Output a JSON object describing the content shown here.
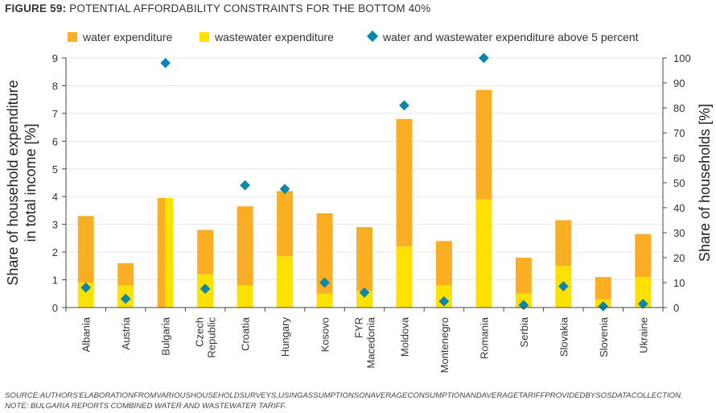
{
  "figure": {
    "number": "FIGURE 59:",
    "title": "POTENTIAL AFFORDABILITY CONSTRAINTS FOR THE BOTTOM 40%"
  },
  "legend": {
    "water": "water expenditure",
    "wastewater": "wastewater expenditure",
    "above5": "water and wastewater expenditure above 5 percent"
  },
  "colors": {
    "water": "#F9AE24",
    "wastewater": "#FFE100",
    "above5": "#0A86A8",
    "axis": "#444444",
    "grid": "#e6e6e6"
  },
  "chart_data": {
    "type": "bar",
    "stacked": true,
    "categories": [
      "Albania",
      "Austria",
      "Bulgaria",
      "Czech Republic",
      "Croatia",
      "Hungary",
      "Kosovo",
      "FYR Macedonia",
      "Moldova",
      "Montenegro",
      "Romania",
      "Serbia",
      "Slovakia",
      "Slovenia",
      "Ukraine"
    ],
    "category_lines": [
      [
        "Albania"
      ],
      [
        "Austria"
      ],
      [
        "Bulgaria"
      ],
      [
        "Czech",
        "Republic"
      ],
      [
        "Croatia"
      ],
      [
        "Hungary"
      ],
      [
        "Kosovo"
      ],
      [
        "FYR",
        "Macedonia"
      ],
      [
        "Moldova"
      ],
      [
        "Montenegro"
      ],
      [
        "Romania"
      ],
      [
        "Serbia"
      ],
      [
        "Slovakia"
      ],
      [
        "Slovenia"
      ],
      [
        "Ukraine"
      ]
    ],
    "series": [
      {
        "name": "wastewater expenditure",
        "values": [
          0.9,
          0.8,
          0,
          1.2,
          0.8,
          1.85,
          0.5,
          0.6,
          2.2,
          0.8,
          3.9,
          0.5,
          1.5,
          0.3,
          1.1
        ]
      },
      {
        "name": "water expenditure",
        "values": [
          2.4,
          0.8,
          3.95,
          1.6,
          2.85,
          2.35,
          2.9,
          2.3,
          4.6,
          1.6,
          3.95,
          1.3,
          1.65,
          0.8,
          1.55
        ]
      },
      {
        "name": "water and wastewater expenditure above 5 percent",
        "axis": "right",
        "values": [
          8,
          3.5,
          98,
          7.5,
          49,
          47.5,
          10,
          6,
          81,
          2.5,
          100,
          1,
          8.5,
          0.5,
          1.5
        ]
      }
    ],
    "combined_tariff_index": 2,
    "ylabel_left": [
      "Share of household expenditure",
      "in total income [%]"
    ],
    "ylabel_right": "Share of households [%]",
    "ylim_left": [
      0,
      9
    ],
    "ylim_right": [
      0,
      100
    ],
    "yticks_left": [
      "0",
      "1",
      "2",
      "3",
      "4",
      "5",
      "6",
      "7",
      "8",
      "9"
    ],
    "yticks_right": [
      "0",
      "10",
      "20",
      "30",
      "40",
      "50",
      "60",
      "70",
      "80",
      "90",
      "100"
    ],
    "grid": true,
    "legend_position": "top"
  },
  "source": "SOURCE:AUTHORS'ELABORATIONFROMVARIOUSHOUSEHOLDSURVEYS,USINGASSUMPTIONSONAVERAGECONSUMPTIONANDAVERAGETARIFFPROVIDEDBYSOSDATACOLLECTION.",
  "note": "NOTE: BULGARIA REPORTS COMBINED WATER AND WASTEWATER TARIFF."
}
